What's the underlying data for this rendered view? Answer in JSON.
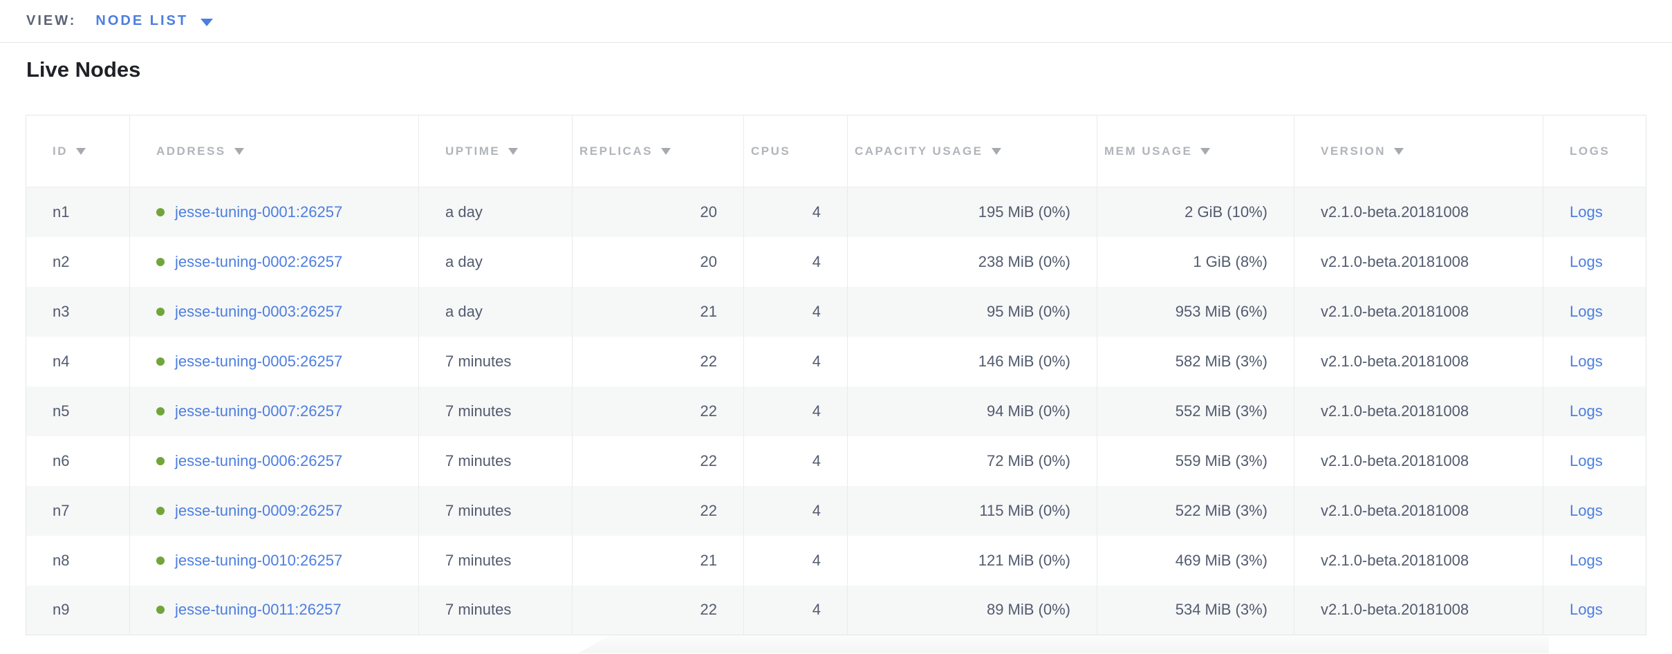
{
  "view_bar": {
    "label": "VIEW:",
    "selected": "NODE LIST"
  },
  "page": {
    "title": "Live Nodes"
  },
  "table": {
    "columns": [
      {
        "key": "id",
        "label": "ID",
        "sortable": true,
        "align": "left"
      },
      {
        "key": "address",
        "label": "ADDRESS",
        "sortable": true,
        "align": "left"
      },
      {
        "key": "uptime",
        "label": "UPTIME",
        "sortable": true,
        "align": "left"
      },
      {
        "key": "replicas",
        "label": "REPLICAS",
        "sortable": true,
        "align": "right"
      },
      {
        "key": "cpus",
        "label": "CPUS",
        "sortable": false,
        "align": "right"
      },
      {
        "key": "capacity",
        "label": "CAPACITY USAGE",
        "sortable": true,
        "align": "right"
      },
      {
        "key": "mem",
        "label": "MEM USAGE",
        "sortable": true,
        "align": "right"
      },
      {
        "key": "version",
        "label": "VERSION",
        "sortable": true,
        "align": "left"
      },
      {
        "key": "logs",
        "label": "LOGS",
        "sortable": false,
        "align": "left"
      }
    ],
    "rows": [
      {
        "id": "n1",
        "status": "live",
        "address": "jesse-tuning-0001:26257",
        "uptime": "a day",
        "replicas": "20",
        "cpus": "4",
        "capacity": "195 MiB (0%)",
        "mem": "2 GiB (10%)",
        "version": "v2.1.0-beta.20181008",
        "logs": "Logs"
      },
      {
        "id": "n2",
        "status": "live",
        "address": "jesse-tuning-0002:26257",
        "uptime": "a day",
        "replicas": "20",
        "cpus": "4",
        "capacity": "238 MiB (0%)",
        "mem": "1 GiB (8%)",
        "version": "v2.1.0-beta.20181008",
        "logs": "Logs"
      },
      {
        "id": "n3",
        "status": "live",
        "address": "jesse-tuning-0003:26257",
        "uptime": "a day",
        "replicas": "21",
        "cpus": "4",
        "capacity": "95 MiB (0%)",
        "mem": "953 MiB (6%)",
        "version": "v2.1.0-beta.20181008",
        "logs": "Logs"
      },
      {
        "id": "n4",
        "status": "live",
        "address": "jesse-tuning-0005:26257",
        "uptime": "7 minutes",
        "replicas": "22",
        "cpus": "4",
        "capacity": "146 MiB (0%)",
        "mem": "582 MiB (3%)",
        "version": "v2.1.0-beta.20181008",
        "logs": "Logs"
      },
      {
        "id": "n5",
        "status": "live",
        "address": "jesse-tuning-0007:26257",
        "uptime": "7 minutes",
        "replicas": "22",
        "cpus": "4",
        "capacity": "94 MiB (0%)",
        "mem": "552 MiB (3%)",
        "version": "v2.1.0-beta.20181008",
        "logs": "Logs"
      },
      {
        "id": "n6",
        "status": "live",
        "address": "jesse-tuning-0006:26257",
        "uptime": "7 minutes",
        "replicas": "22",
        "cpus": "4",
        "capacity": "72 MiB (0%)",
        "mem": "559 MiB (3%)",
        "version": "v2.1.0-beta.20181008",
        "logs": "Logs"
      },
      {
        "id": "n7",
        "status": "live",
        "address": "jesse-tuning-0009:26257",
        "uptime": "7 minutes",
        "replicas": "22",
        "cpus": "4",
        "capacity": "115 MiB (0%)",
        "mem": "522 MiB (3%)",
        "version": "v2.1.0-beta.20181008",
        "logs": "Logs"
      },
      {
        "id": "n8",
        "status": "live",
        "address": "jesse-tuning-0010:26257",
        "uptime": "7 minutes",
        "replicas": "21",
        "cpus": "4",
        "capacity": "121 MiB (0%)",
        "mem": "469 MiB (3%)",
        "version": "v2.1.0-beta.20181008",
        "logs": "Logs"
      },
      {
        "id": "n9",
        "status": "live",
        "address": "jesse-tuning-0011:26257",
        "uptime": "7 minutes",
        "replicas": "22",
        "cpus": "4",
        "capacity": "89 MiB (0%)",
        "mem": "534 MiB (3%)",
        "version": "v2.1.0-beta.20181008",
        "logs": "Logs"
      }
    ]
  },
  "icons": {
    "view_caret": "chevron-down-icon",
    "sort": "sort-arrow-icon",
    "live_status": "live-status-dot-icon"
  },
  "colors": {
    "accent_blue": "#4c7ee0",
    "link_blue": "#4c7ee0",
    "live_green": "#71a53a",
    "header_gray": "#b1b4b9",
    "cell_text": "#525b6e",
    "alt_row": "#f6f7f7"
  }
}
